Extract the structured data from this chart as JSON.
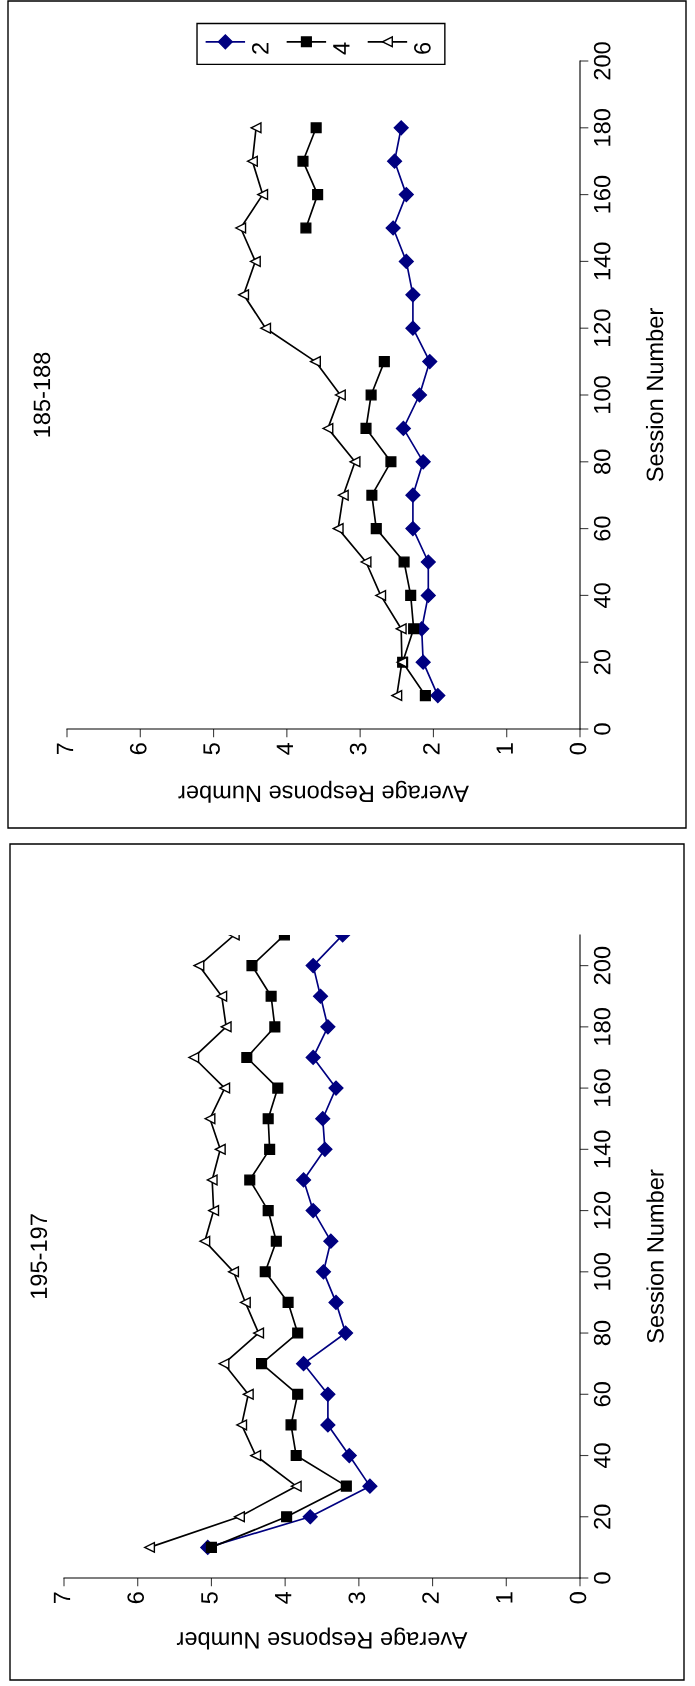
{
  "chart_data": [
    {
      "type": "line",
      "title": "185-188",
      "ylabel": "Session Number",
      "xlabel": "Average Response Number",
      "series": [
        {
          "name": "2",
          "color": "#000080",
          "marker": "diamond",
          "x": [
            1.94,
            2.14,
            2.16,
            2.07,
            2.07,
            2.28,
            2.28,
            2.14,
            2.41,
            2.19,
            2.05,
            2.28,
            2.28,
            2.37,
            2.55,
            2.37,
            2.53,
            2.44
          ],
          "values": [
            10,
            20,
            30,
            40,
            50,
            60,
            70,
            80,
            90,
            100,
            110,
            120,
            130,
            140,
            150,
            160,
            170,
            180
          ]
        },
        {
          "name": "4",
          "color": "#000000",
          "marker": "square",
          "x": [
            2.11,
            2.42,
            2.27,
            2.31,
            2.4,
            2.78,
            2.84,
            2.58,
            2.92,
            2.85,
            2.67,
            null,
            null,
            null,
            3.74,
            3.58,
            3.78,
            3.6
          ],
          "values": [
            10,
            20,
            30,
            40,
            50,
            60,
            70,
            80,
            90,
            100,
            110,
            null,
            null,
            null,
            150,
            160,
            170,
            180
          ]
        },
        {
          "name": "6",
          "color": "#000000",
          "marker": "triangle",
          "x": [
            2.5,
            2.43,
            2.44,
            2.72,
            2.92,
            3.3,
            3.23,
            3.07,
            3.44,
            3.27,
            3.61,
            4.29,
            4.59,
            4.43,
            4.63,
            4.33,
            4.47,
            4.42
          ],
          "values": [
            10,
            20,
            30,
            40,
            50,
            60,
            70,
            80,
            90,
            100,
            110,
            120,
            130,
            140,
            150,
            160,
            170,
            180
          ]
        }
      ],
      "ylim": [
        0,
        200
      ],
      "yticks": [
        0,
        20,
        40,
        60,
        80,
        100,
        120,
        140,
        160,
        180,
        200
      ],
      "xlim": [
        7,
        0
      ],
      "xticks": [
        7,
        6,
        5,
        4,
        3,
        2,
        1,
        0
      ],
      "legend": "top",
      "line_style": "solid"
    },
    {
      "type": "line",
      "title": "195-197",
      "ylabel": "Session Number",
      "xlabel": "Average Response Number",
      "series": [
        {
          "color": "#000080",
          "marker": "diamond",
          "x": [
            5.05,
            3.66,
            2.85,
            3.13,
            3.42,
            3.42,
            3.75,
            3.18,
            3.31,
            3.48,
            3.38,
            3.62,
            3.75,
            3.46,
            3.49,
            3.31,
            3.62,
            3.42,
            3.52,
            3.62,
            3.22
          ],
          "values": [
            10,
            20,
            30,
            40,
            50,
            60,
            70,
            80,
            90,
            100,
            110,
            120,
            130,
            140,
            150,
            160,
            170,
            180,
            190,
            200,
            210
          ]
        },
        {
          "color": "#000000",
          "marker": "square",
          "x": [
            5.0,
            3.98,
            3.17,
            3.85,
            3.92,
            3.83,
            4.32,
            3.83,
            3.96,
            4.27,
            4.12,
            4.23,
            4.48,
            4.21,
            4.23,
            4.1,
            4.52,
            4.14,
            4.19,
            4.45,
            4.01
          ],
          "values": [
            10,
            20,
            30,
            40,
            50,
            60,
            70,
            80,
            90,
            100,
            110,
            120,
            130,
            140,
            150,
            160,
            170,
            180,
            190,
            200,
            210
          ]
        },
        {
          "color": "#000000",
          "marker": "triangle",
          "x": [
            5.84,
            4.62,
            3.85,
            4.4,
            4.59,
            4.5,
            4.83,
            4.36,
            4.54,
            4.7,
            5.09,
            4.97,
            4.99,
            4.88,
            5.02,
            4.82,
            5.24,
            4.8,
            4.86,
            5.17,
            4.69
          ],
          "values": [
            10,
            20,
            30,
            40,
            50,
            60,
            70,
            80,
            90,
            100,
            110,
            120,
            130,
            140,
            150,
            160,
            170,
            180,
            190,
            200,
            210
          ]
        }
      ],
      "ylim": [
        0,
        210
      ],
      "yticks": [
        0,
        20,
        40,
        60,
        80,
        100,
        120,
        140,
        160,
        180,
        200
      ],
      "xlim": [
        7,
        0
      ],
      "xticks": [
        7,
        6,
        5,
        4,
        3,
        2,
        1,
        0
      ],
      "line_style": "solid"
    }
  ]
}
